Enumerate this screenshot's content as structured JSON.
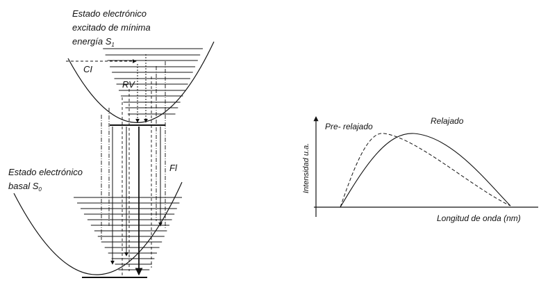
{
  "diagram": {
    "excited_state_label": [
      "Estado electrónico",
      "excitado de mínima",
      "energía S"
    ],
    "excited_state_subscript": "1",
    "ground_state_label": [
      "Estado electrónico",
      "basal S"
    ],
    "ground_state_subscript": "0",
    "ci_label": "CI",
    "rv_label": "RV",
    "fl_label": "Fl"
  },
  "chart_data": {
    "type": "line",
    "xlabel": "Longitud de onda (nm)",
    "ylabel": "Intensidad u.a.",
    "series": [
      {
        "name": "Pre- relajado",
        "style": "dashed"
      },
      {
        "name": "Relajado",
        "style": "solid"
      }
    ],
    "grid": false
  },
  "colors": {
    "ink": "#111111",
    "background": "#ffffff"
  }
}
